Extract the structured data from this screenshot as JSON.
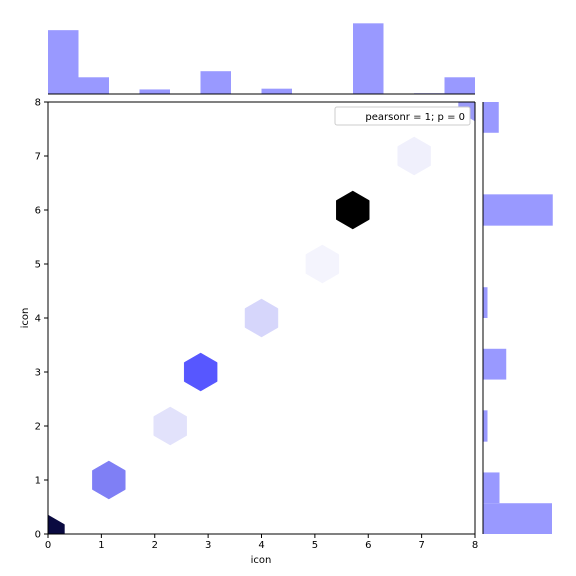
{
  "chart_data": {
    "type": "hexbin",
    "joint": {
      "xlabel": "icon",
      "ylabel": "icon",
      "xlim": [
        0,
        8
      ],
      "ylim": [
        0,
        8
      ],
      "xticks": [
        "0",
        "1",
        "2",
        "3",
        "4",
        "5",
        "6",
        "7",
        "8"
      ],
      "yticks": [
        "0",
        "1",
        "2",
        "3",
        "4",
        "5",
        "6",
        "7",
        "8"
      ],
      "legend": {
        "label": "pearsonr = 1; p = 0",
        "placement": "top-right"
      },
      "hexbins": [
        {
          "x": 0.0,
          "y": 0,
          "color": "#0a0a40"
        },
        {
          "x": 1.14,
          "y": 1,
          "color": "#7f7ff5"
        },
        {
          "x": 2.29,
          "y": 2,
          "color": "#e2e2fb"
        },
        {
          "x": 2.86,
          "y": 3,
          "color": "#5757ff"
        },
        {
          "x": 4.0,
          "y": 4,
          "color": "#d6d6fb"
        },
        {
          "x": 5.14,
          "y": 5,
          "color": "#f4f4fd"
        },
        {
          "x": 5.71,
          "y": 6,
          "color": "#000000"
        },
        {
          "x": 6.86,
          "y": 7,
          "color": "#f0f0fc"
        },
        {
          "x": 8.0,
          "y": 8,
          "color": "#9a9af8"
        }
      ]
    },
    "x_marginal": {
      "type": "histogram",
      "bins": [
        {
          "x0": 0.0,
          "x1": 0.5714,
          "count": 0.84
        },
        {
          "x0": 0.5714,
          "x1": 1.1429,
          "count": 0.22
        },
        {
          "x0": 1.7143,
          "x1": 2.2857,
          "count": 0.06
        },
        {
          "x0": 2.8571,
          "x1": 3.4286,
          "count": 0.3
        },
        {
          "x0": 4.0,
          "x1": 4.5714,
          "count": 0.07
        },
        {
          "x0": 5.7143,
          "x1": 6.2857,
          "count": 0.93
        },
        {
          "x0": 6.8571,
          "x1": 7.4286,
          "count": 0.01
        },
        {
          "x0": 7.4286,
          "x1": 8.0,
          "count": 0.22
        }
      ]
    },
    "y_marginal": {
      "type": "histogram",
      "bins": [
        {
          "y0": 0.0,
          "y1": 0.57,
          "count": 0.92
        },
        {
          "y0": 0.57,
          "y1": 1.14,
          "count": 0.22
        },
        {
          "y0": 1.71,
          "y1": 2.29,
          "count": 0.06
        },
        {
          "y0": 2.86,
          "y1": 3.43,
          "count": 0.31
        },
        {
          "y0": 4.0,
          "y1": 4.57,
          "count": 0.06
        },
        {
          "y0": 5.71,
          "y1": 6.29,
          "count": 0.93
        },
        {
          "y0": 7.43,
          "y1": 8.0,
          "count": 0.21
        }
      ]
    },
    "bar_color": "#9999ff",
    "grid": false
  }
}
